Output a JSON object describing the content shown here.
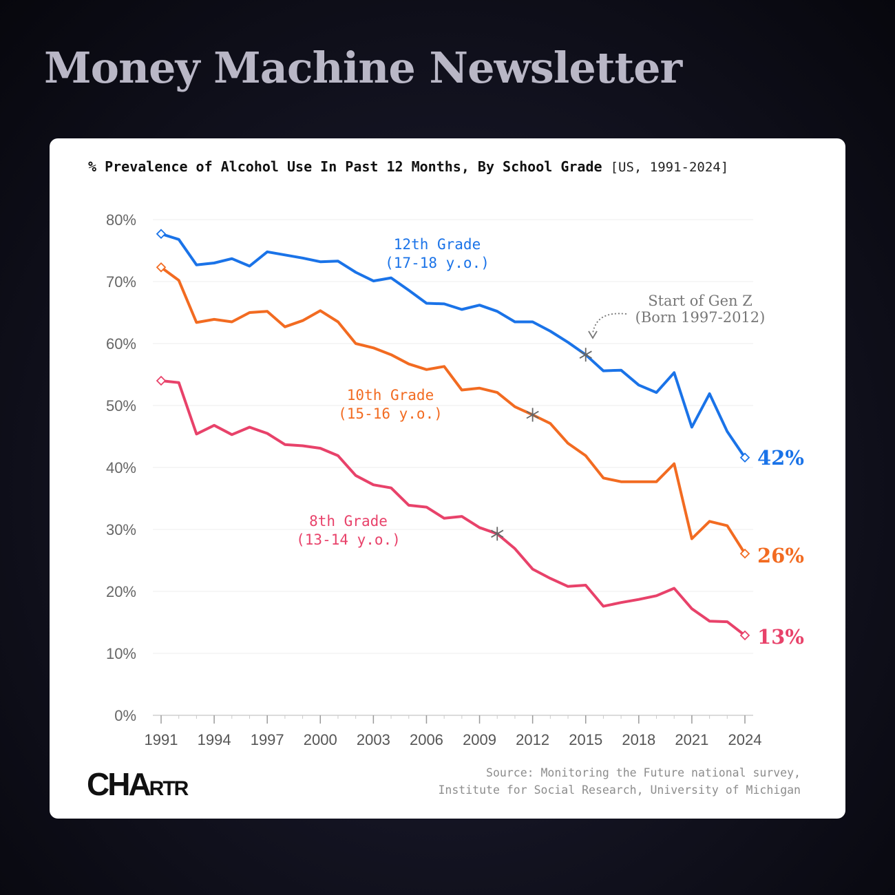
{
  "header": {
    "title": "Money Machine Newsletter"
  },
  "source": {
    "line1": "Source: Monitoring the Future national survey,",
    "line2": "Institute for Social Research, University of Michigan"
  },
  "logo": {
    "text_big": "CHA",
    "text_small": "RTR"
  },
  "chart_data": {
    "type": "line",
    "title": "% Prevalence of Alcohol Use In Past 12 Months, By School Grade",
    "subtitle": "[US, 1991-2024]",
    "xlabel": "",
    "ylabel": "",
    "xlim": [
      1991,
      2024
    ],
    "ylim": [
      0,
      80
    ],
    "x_ticks": [
      1991,
      1994,
      1997,
      2000,
      2003,
      2006,
      2009,
      2012,
      2015,
      2018,
      2021,
      2024
    ],
    "y_ticks": [
      0,
      10,
      20,
      30,
      40,
      50,
      60,
      70,
      80
    ],
    "y_tick_labels": [
      "0%",
      "10%",
      "20%",
      "30%",
      "40%",
      "50%",
      "60%",
      "70%",
      "80%"
    ],
    "grid": "horizontal",
    "legend": "none (direct labels on lines)",
    "x": [
      1991,
      1992,
      1993,
      1994,
      1995,
      1996,
      1997,
      1998,
      1999,
      2000,
      2001,
      2002,
      2003,
      2004,
      2005,
      2006,
      2007,
      2008,
      2009,
      2010,
      2011,
      2012,
      2013,
      2014,
      2015,
      2016,
      2017,
      2018,
      2019,
      2020,
      2021,
      2022,
      2023,
      2024
    ],
    "series": [
      {
        "name_line1": "12th Grade",
        "name_line2": "(17-18 y.o.)",
        "color": "#1a73e8",
        "end_label": "42%",
        "values": [
          77.7,
          76.8,
          72.7,
          73.0,
          73.7,
          72.5,
          74.8,
          74.3,
          73.8,
          73.2,
          73.3,
          71.5,
          70.1,
          70.6,
          68.6,
          66.5,
          66.4,
          65.5,
          66.2,
          65.2,
          63.5,
          63.5,
          62.0,
          60.2,
          58.2,
          55.6,
          55.7,
          53.3,
          52.1,
          55.3,
          46.5,
          51.9,
          45.8,
          41.6
        ],
        "gen_z_marker_x": 2015
      },
      {
        "name_line1": "10th Grade",
        "name_line2": "(15-16 y.o.)",
        "color": "#f26b21",
        "end_label": "26%",
        "values": [
          72.3,
          70.2,
          63.4,
          63.9,
          63.5,
          65.0,
          65.2,
          62.7,
          63.7,
          65.3,
          63.5,
          60.0,
          59.3,
          58.2,
          56.7,
          55.8,
          56.3,
          52.5,
          52.8,
          52.1,
          49.8,
          48.5,
          47.1,
          43.9,
          41.9,
          38.3,
          37.7,
          37.7,
          37.7,
          40.6,
          28.5,
          31.3,
          30.6,
          26.1
        ],
        "gen_z_marker_x": 2012
      },
      {
        "name_line1": "8th Grade",
        "name_line2": "(13-14 y.o.)",
        "color": "#e8426a",
        "end_label": "13%",
        "values": [
          54.0,
          53.7,
          45.4,
          46.8,
          45.3,
          46.5,
          45.5,
          43.7,
          43.5,
          43.1,
          41.9,
          38.7,
          37.2,
          36.7,
          33.9,
          33.6,
          31.8,
          32.1,
          30.3,
          29.3,
          26.9,
          23.6,
          22.1,
          20.8,
          21.0,
          17.6,
          18.2,
          18.7,
          19.3,
          20.5,
          17.2,
          15.2,
          15.1,
          12.9
        ],
        "gen_z_marker_x": 2010
      }
    ],
    "annotations": [
      {
        "text_line1": "Start of Gen Z",
        "text_line2": "(Born 1997-2012)",
        "color": "#777777"
      }
    ]
  }
}
